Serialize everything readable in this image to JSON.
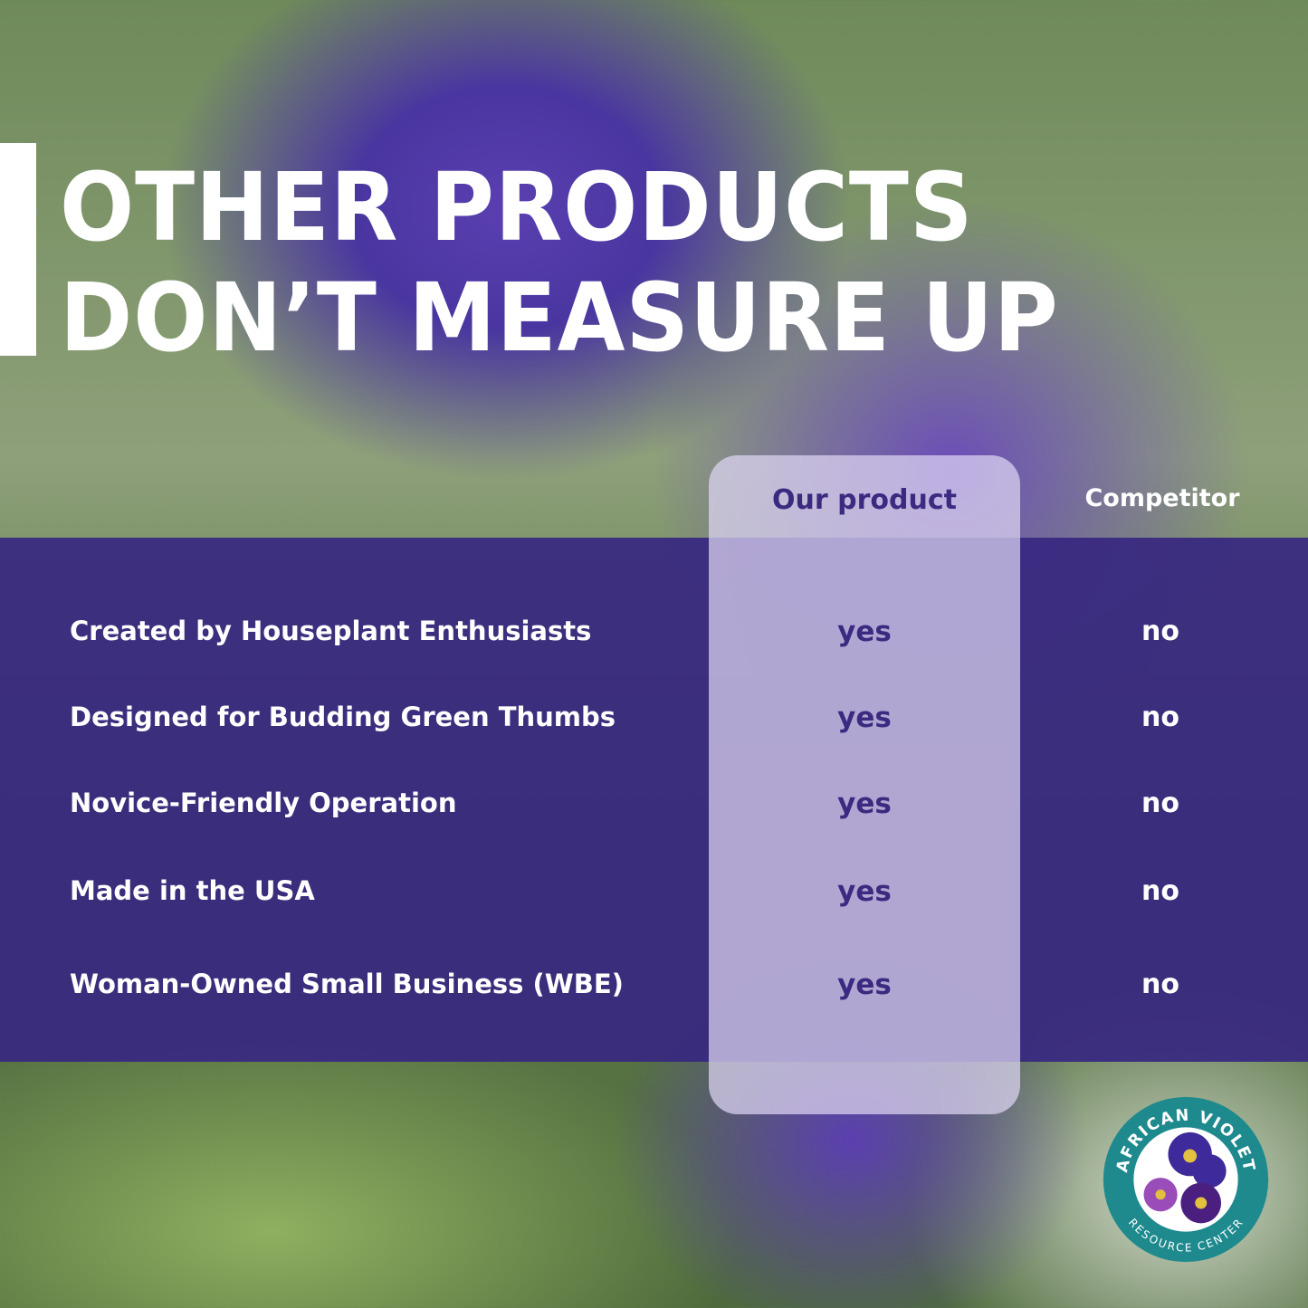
{
  "title": {
    "line1": "OTHER PRODUCTS",
    "line2": "DON’T MEASURE UP"
  },
  "table": {
    "headers": {
      "ours": "Our product",
      "competitor": "Competitor"
    },
    "rows": [
      {
        "feature": "Created by Houseplant Enthusiasts",
        "ours": "yes",
        "competitor": "no"
      },
      {
        "feature": "Designed for Budding Green Thumbs",
        "ours": "yes",
        "competitor": "no"
      },
      {
        "feature": "Novice-Friendly Operation",
        "ours": "yes",
        "competitor": "no"
      },
      {
        "feature": "Made in the USA",
        "ours": "yes",
        "competitor": "no"
      },
      {
        "feature": "Woman-Owned Small Business (WBE)",
        "ours": "yes",
        "competitor": "no"
      }
    ]
  },
  "logo": {
    "top_text": "AFRICAN VIOLET",
    "bottom_text": "RESOURCE CENTER",
    "ring_color": "#1e8a8e"
  },
  "colors": {
    "band": "#382880",
    "highlight": "#ded6f2",
    "accent_text": "#3b2a80"
  }
}
